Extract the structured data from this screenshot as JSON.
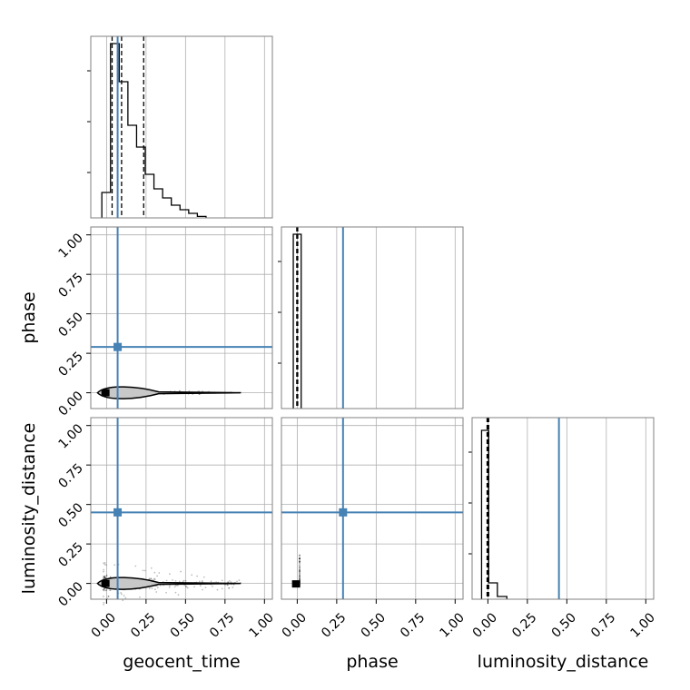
{
  "chart_data": {
    "type": "corner",
    "parameters": [
      "geocent_time",
      "phase",
      "luminosity_distance"
    ],
    "axis_range": [
      -0.1,
      1.05
    ],
    "ticks": [
      0.0,
      0.25,
      0.5,
      0.75,
      1.0
    ],
    "tick_labels": [
      "0.00",
      "0.25",
      "0.50",
      "0.75",
      "1.00"
    ],
    "grid": true,
    "colors": {
      "truth": "#4682b4",
      "hist": "#000000",
      "quantile": "#000000",
      "grid": "#b0b0b0"
    },
    "truths": {
      "geocent_time": 0.07,
      "phase": 0.29,
      "luminosity_distance": 0.45
    },
    "histograms": {
      "geocent_time": {
        "edges": [
          -0.03,
          0.025,
          0.08,
          0.135,
          0.19,
          0.245,
          0.3,
          0.355,
          0.41,
          0.465,
          0.52,
          0.575,
          0.63
        ],
        "counts": [
          0.14,
          0.96,
          0.75,
          0.51,
          0.39,
          0.24,
          0.16,
          0.11,
          0.07,
          0.045,
          0.025,
          0.008
        ],
        "quantiles": [
          0.035,
          0.095,
          0.235
        ]
      },
      "phase": {
        "edges": [
          -0.025,
          0.025
        ],
        "counts": [
          0.96
        ],
        "quantiles": [
          -0.003,
          0.0,
          0.003
        ]
      },
      "luminosity_distance": {
        "edges": [
          -0.04,
          0.005,
          0.06,
          0.12
        ],
        "counts": [
          0.93,
          0.09,
          0.015
        ],
        "quantiles": [
          -0.005,
          0.0,
          0.005
        ]
      }
    },
    "scatter": {
      "phase_vs_geocent_time": {
        "x_extent": [
          -0.02,
          0.85
        ],
        "y_center": 0.0
      },
      "luminosity_distance_vs_geocent_time": {
        "x_extent": [
          -0.02,
          0.85
        ],
        "y_center": 0.0,
        "y_spread": 0.18
      },
      "luminosity_distance_vs_phase": {
        "x": [
          -0.01,
          0.02
        ],
        "y": [
          -0.02,
          0.18
        ]
      }
    }
  }
}
